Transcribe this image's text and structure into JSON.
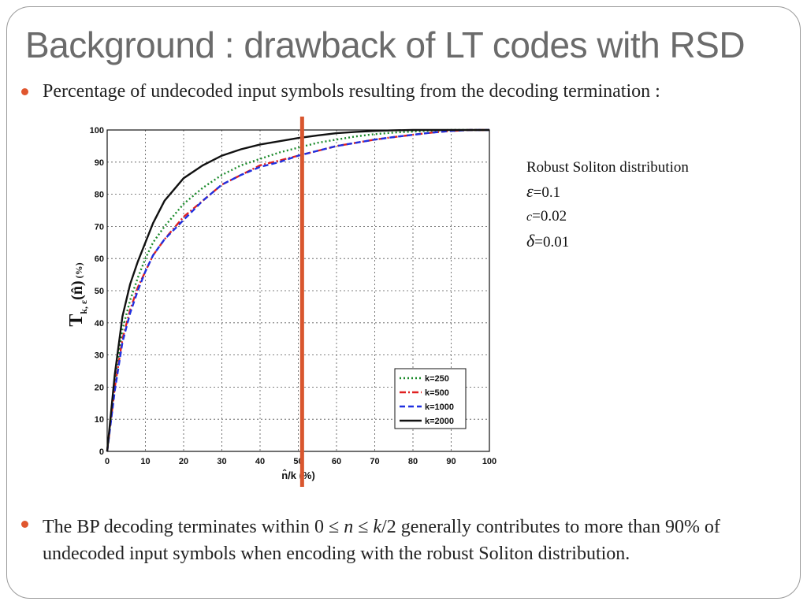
{
  "slide": {
    "title": "Background : drawback of LT codes with RSD",
    "bullet1": "Percentage of undecoded input symbols resulting from the decoding termination :",
    "bullet2_pre": "The BP decoding terminates within 0 ≤ ",
    "bullet2_n": "n",
    "bullet2_mid": " ≤ ",
    "bullet2_k": "k",
    "bullet2_post": "/2 generally contributes to more than 90% of undecoded input symbols when encoding with the robust Soliton distribution.",
    "params": {
      "heading": "Robust Soliton distribution",
      "eps_sym": "ε",
      "eps_val": "=0.1",
      "c_sym": "c",
      "c_val": "=0.02",
      "delta_sym": "δ",
      "delta_val": "=0.01"
    },
    "colors": {
      "accent": "#e0562e",
      "marker_line": "#d9562e"
    }
  },
  "chart_data": {
    "type": "line",
    "ylabel_main": "T",
    "ylabel_sub": "k, ε",
    "ylabel_arg": "(n̂)",
    "ylabel_unit": "(%)",
    "xlabel": "n̂/k (%)",
    "xlim": [
      0,
      100
    ],
    "ylim": [
      0,
      100
    ],
    "xticks": [
      "0",
      "10",
      "20",
      "30",
      "40",
      "50",
      "60",
      "70",
      "80",
      "90",
      "100"
    ],
    "yticks": [
      "0",
      "10",
      "20",
      "30",
      "40",
      "50",
      "60",
      "70",
      "80",
      "90",
      "100"
    ],
    "grid": true,
    "legend_position": "bottom-right",
    "vertical_marker_x": 51,
    "series": [
      {
        "name": "k=250",
        "color": "#1a8a2a",
        "style": "dotted",
        "x": [
          0,
          2,
          4,
          6,
          8,
          10,
          12,
          15,
          20,
          25,
          30,
          35,
          40,
          45,
          50,
          55,
          60,
          65,
          70,
          75,
          80,
          85,
          90,
          95,
          100
        ],
        "y": [
          0,
          22,
          38,
          47,
          54,
          60,
          65,
          70,
          77,
          82,
          86,
          89,
          91,
          93,
          94.5,
          96,
          97,
          98,
          98.7,
          99.2,
          99.5,
          99.8,
          100,
          100,
          100
        ]
      },
      {
        "name": "k=500",
        "color": "#e02020",
        "style": "dashdot",
        "x": [
          0,
          2,
          4,
          6,
          8,
          10,
          12,
          15,
          20,
          25,
          30,
          35,
          40,
          45,
          50,
          55,
          60,
          65,
          70,
          75,
          80,
          85,
          90,
          95,
          100
        ],
        "y": [
          0,
          20,
          35,
          44,
          51,
          56,
          61,
          66,
          73,
          78,
          83,
          86,
          89,
          90.5,
          92,
          93.5,
          95,
          96,
          97,
          97.8,
          98.5,
          99.2,
          99.7,
          100,
          100
        ]
      },
      {
        "name": "k=1000",
        "color": "#2030e0",
        "style": "dashed",
        "x": [
          0,
          2,
          4,
          6,
          8,
          10,
          12,
          15,
          20,
          25,
          30,
          35,
          40,
          45,
          50,
          55,
          60,
          65,
          70,
          75,
          80,
          85,
          90,
          95,
          100
        ],
        "y": [
          0,
          19,
          34,
          43,
          50,
          56,
          61,
          66,
          72,
          78,
          83,
          86,
          88.5,
          90,
          92,
          93.5,
          95,
          96,
          97,
          97.8,
          98.5,
          99.2,
          99.7,
          100,
          100
        ]
      },
      {
        "name": "k=2000",
        "color": "#111111",
        "style": "solid",
        "x": [
          0,
          2,
          4,
          6,
          8,
          10,
          12,
          15,
          20,
          25,
          30,
          35,
          40,
          45,
          50,
          55,
          60,
          65,
          70,
          75,
          80,
          85,
          90,
          95,
          100
        ],
        "y": [
          0,
          24,
          42,
          52,
          59,
          65,
          71,
          78,
          85,
          89,
          92,
          94,
          95.5,
          96.5,
          97.5,
          98.3,
          99,
          99.4,
          99.7,
          99.9,
          100,
          100,
          100,
          100,
          100
        ]
      }
    ]
  }
}
